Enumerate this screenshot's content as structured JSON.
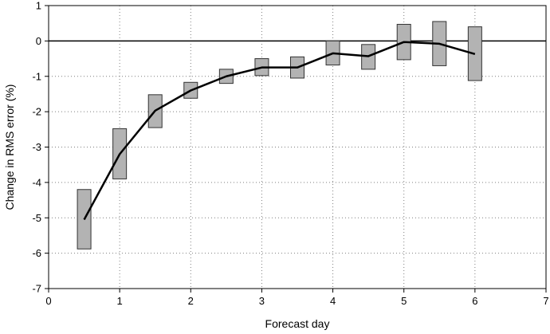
{
  "chart_data": {
    "type": "line",
    "title": "",
    "xlabel": "Forecast day",
    "ylabel": "Change in RMS error (%)",
    "xlim": [
      0,
      7
    ],
    "ylim": [
      -7,
      1
    ],
    "xticks": [
      "0",
      "1",
      "2",
      "3",
      "4",
      "5",
      "6",
      "7"
    ],
    "yticks": [
      "1",
      "0",
      "-1",
      "-2",
      "-3",
      "-4",
      "-5",
      "-6",
      "-7"
    ],
    "grid": true,
    "x": [
      0.5,
      1.0,
      1.5,
      2.0,
      2.5,
      3.0,
      3.5,
      4.0,
      4.5,
      5.0,
      5.5,
      6.0
    ],
    "series": [
      {
        "values": [
          -5.05,
          -3.2,
          -1.97,
          -1.4,
          -1.0,
          -0.75,
          -0.75,
          -0.35,
          -0.43,
          -0.03,
          -0.08,
          -0.37
        ]
      }
    ],
    "ranges": {
      "low": [
        -5.88,
        -3.9,
        -2.45,
        -1.62,
        -1.2,
        -0.98,
        -1.05,
        -0.68,
        -0.8,
        -0.53,
        -0.7,
        -1.12
      ],
      "high": [
        -4.2,
        -2.48,
        -1.52,
        -1.17,
        -0.8,
        -0.5,
        -0.45,
        0.0,
        -0.1,
        0.47,
        0.55,
        0.4
      ]
    },
    "colors": {
      "range_fill": "#b3b3b3",
      "line": "#000000",
      "grid": "#7f7f7f"
    }
  }
}
